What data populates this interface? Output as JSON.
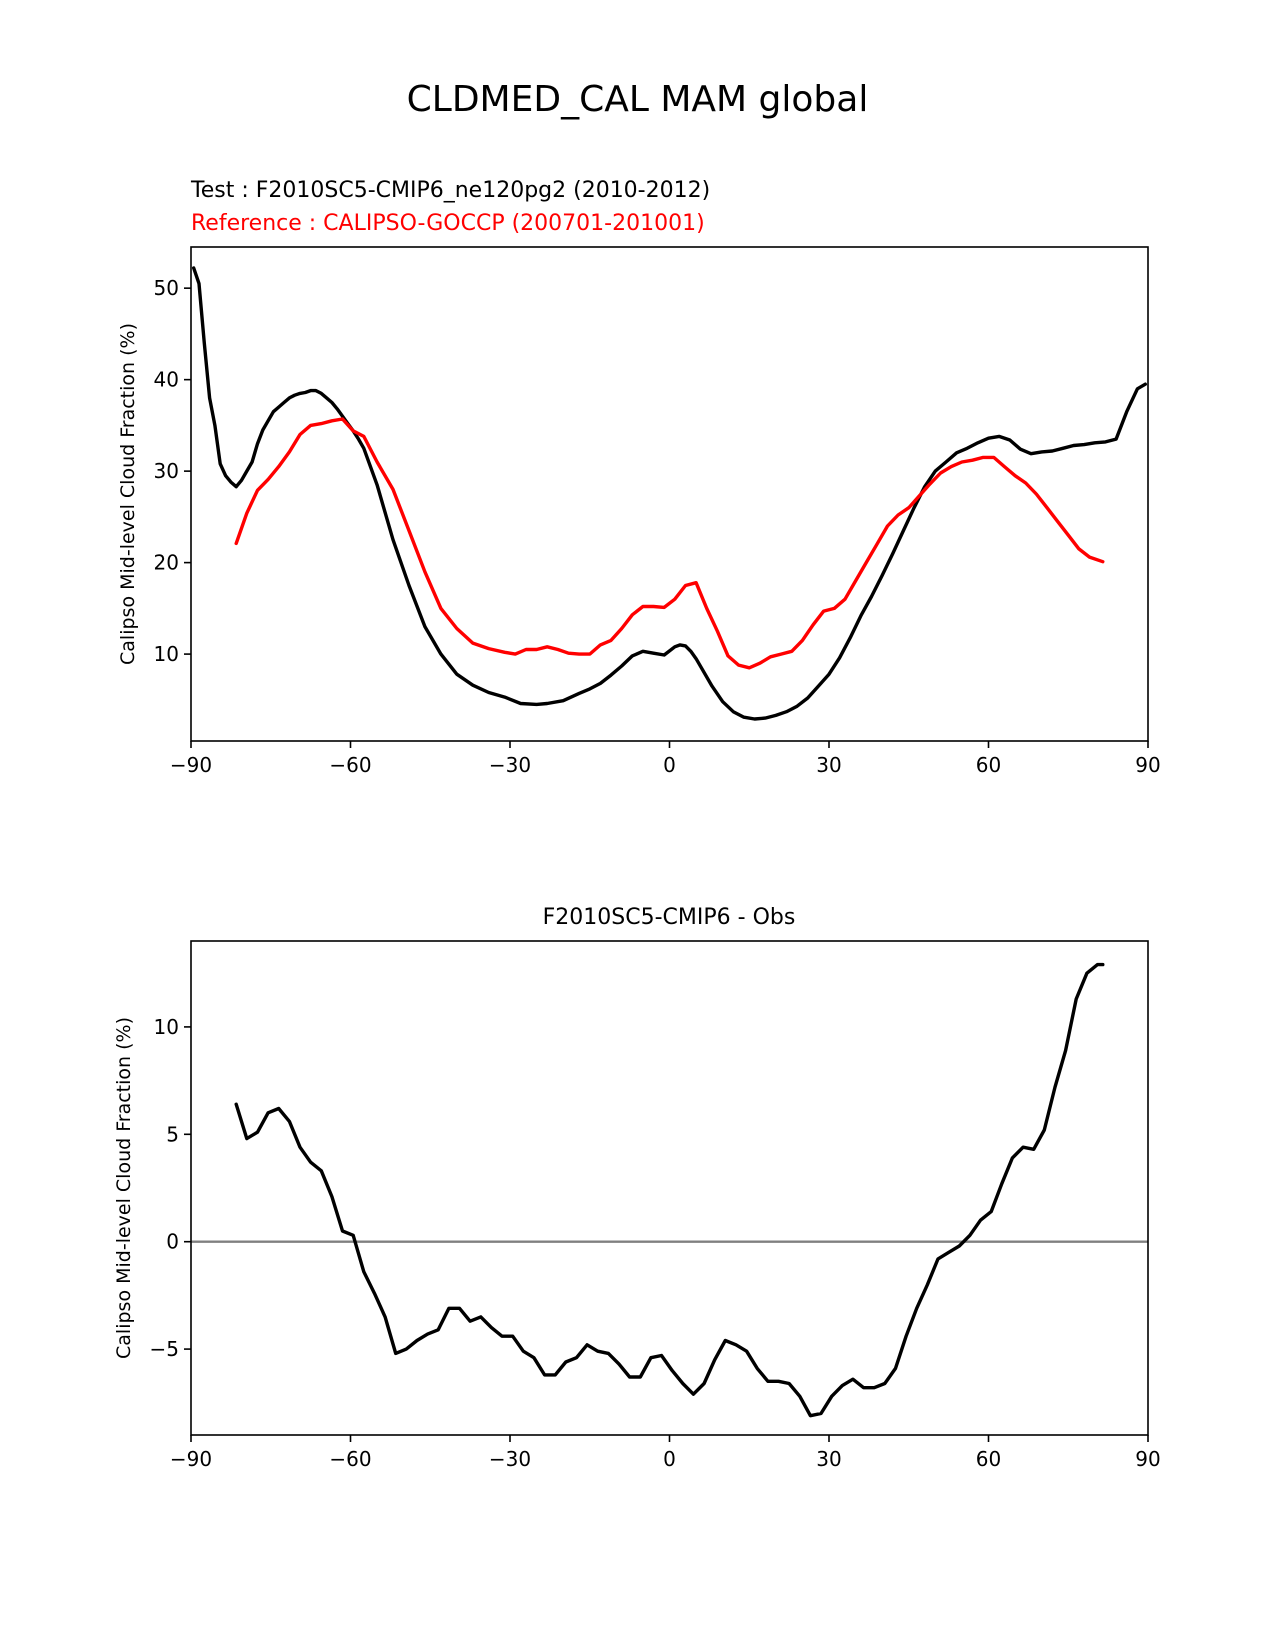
{
  "chart_data": [
    {
      "type": "line",
      "suptitle": "CLDMED_CAL MAM global",
      "test_label": "Test : F2010SC5-CMIP6_ne120pg2 (2010-2012)",
      "ref_label": "Reference : CALIPSO-GOCCP (200701-201001)",
      "xlabel": "",
      "ylabel": "Calipso Mid-level Cloud Fraction (%)",
      "xlim": [
        -90,
        90
      ],
      "ylim": [
        0.5,
        54.5
      ],
      "xticks": [
        -90,
        -60,
        -30,
        0,
        30,
        60,
        90
      ],
      "xtick_labels": [
        "−90",
        "−60",
        "−30",
        "0",
        "30",
        "60",
        "90"
      ],
      "yticks": [
        10,
        20,
        30,
        40,
        50
      ],
      "ytick_labels": [
        "10",
        "20",
        "30",
        "40",
        "50"
      ],
      "series": [
        {
          "name": "Test",
          "color": "#000000",
          "x": [
            -89.5,
            -88.5,
            -87.5,
            -86.5,
            -85.5,
            -84.5,
            -83.5,
            -82.5,
            -81.5,
            -80.5,
            -79.5,
            -78.5,
            -77.5,
            -76.5,
            -75.5,
            -74.5,
            -73.5,
            -72.5,
            -71.5,
            -70.5,
            -69.5,
            -68.5,
            -67.5,
            -66.5,
            -65.5,
            -64.5,
            -63.5,
            -62.5,
            -61.5,
            -60.5,
            -59.5,
            -58.5,
            -57.5,
            -55,
            -52,
            -49,
            -46,
            -43,
            -40,
            -37,
            -34,
            -31,
            -28,
            -25,
            -23,
            -20,
            -17,
            -15,
            -13,
            -11,
            -9,
            -7,
            -5,
            -3,
            -1,
            1,
            2,
            3,
            4,
            5,
            6,
            8,
            10,
            12,
            14,
            16,
            18,
            20,
            22,
            24,
            26,
            28,
            30,
            32,
            34,
            36,
            38,
            40,
            42,
            44,
            46,
            48,
            50,
            52,
            54,
            56,
            58,
            60,
            62,
            64,
            66,
            68,
            70,
            72,
            74,
            76,
            78,
            80,
            82,
            84,
            86,
            88,
            89.5
          ],
          "y": [
            52.2,
            50.5,
            44,
            38,
            35,
            30.8,
            29.5,
            28.8,
            28.3,
            29,
            30,
            31,
            33,
            34.5,
            35.5,
            36.5,
            37,
            37.5,
            38,
            38.3,
            38.5,
            38.6,
            38.8,
            38.8,
            38.5,
            38,
            37.5,
            36.8,
            36,
            35.2,
            34.4,
            33.5,
            32.5,
            28.5,
            22.5,
            17.5,
            13,
            10,
            7.8,
            6.6,
            5.8,
            5.3,
            4.6,
            4.5,
            4.6,
            4.9,
            5.7,
            6.2,
            6.8,
            7.7,
            8.7,
            9.8,
            10.3,
            10.1,
            9.9,
            10.8,
            11,
            10.9,
            10.3,
            9.5,
            8.5,
            6.5,
            4.8,
            3.7,
            3.1,
            2.9,
            3.0,
            3.3,
            3.7,
            4.3,
            5.2,
            6.5,
            7.8,
            9.6,
            11.8,
            14.2,
            16.3,
            18.6,
            21,
            23.5,
            26,
            28.3,
            30,
            31,
            32,
            32.5,
            33.1,
            33.6,
            33.8,
            33.4,
            32.4,
            31.9,
            32.1,
            32.2,
            32.5,
            32.8,
            32.9,
            33.1,
            33.2,
            33.5,
            36.5,
            39,
            39.5
          ]
        },
        {
          "name": "Reference",
          "color": "#ff0000",
          "x": [
            -81.5,
            -79.5,
            -77.5,
            -75.5,
            -73.5,
            -71.5,
            -69.5,
            -67.5,
            -65.5,
            -63.5,
            -61.5,
            -59.5,
            -57.5,
            -55,
            -52,
            -49,
            -46,
            -43,
            -40,
            -37,
            -34,
            -31,
            -29,
            -27,
            -25,
            -23,
            -21,
            -19,
            -17,
            -15,
            -13,
            -11,
            -9,
            -7,
            -5,
            -3,
            -1,
            1,
            3,
            5,
            7,
            9,
            11,
            13,
            15,
            17,
            19,
            21,
            23,
            25,
            27,
            29,
            31,
            33,
            35,
            37,
            39,
            41,
            43,
            45,
            47,
            49,
            51,
            53,
            55,
            57,
            59,
            61,
            63,
            65,
            67,
            69,
            71,
            73,
            75,
            77,
            79,
            81.5
          ],
          "y": [
            22.1,
            25.4,
            27.9,
            29.1,
            30.5,
            32.1,
            34,
            35,
            35.2,
            35.5,
            35.7,
            34.4,
            33.8,
            31,
            28,
            23.5,
            19,
            15,
            12.8,
            11.2,
            10.6,
            10.2,
            10,
            10.5,
            10.5,
            10.8,
            10.5,
            10.1,
            10,
            10,
            11,
            11.5,
            12.8,
            14.3,
            15.2,
            15.2,
            15.1,
            16,
            17.5,
            17.8,
            15,
            12.5,
            9.8,
            8.8,
            8.5,
            9,
            9.7,
            10,
            10.3,
            11.5,
            13.2,
            14.7,
            15,
            16,
            18,
            20,
            22,
            24,
            25.2,
            26,
            27.3,
            28.6,
            29.8,
            30.5,
            31,
            31.2,
            31.5,
            31.5,
            30.5,
            29.5,
            28.7,
            27.5,
            26,
            24.5,
            23,
            21.5,
            20.6,
            20.1
          ]
        }
      ]
    },
    {
      "type": "line",
      "title": "F2010SC5-CMIP6 - Obs",
      "xlabel": "",
      "ylabel": "Calipso Mid-level Cloud Fraction (%)",
      "xlim": [
        -90,
        90
      ],
      "ylim": [
        -9,
        14
      ],
      "xticks": [
        -90,
        -60,
        -30,
        0,
        30,
        60,
        90
      ],
      "xtick_labels": [
        "−90",
        "−60",
        "−30",
        "0",
        "30",
        "60",
        "90"
      ],
      "yticks": [
        -5,
        0,
        5,
        10
      ],
      "ytick_labels": [
        "−5",
        "0",
        "5",
        "10"
      ],
      "zero_line_color": "#808080",
      "series": [
        {
          "name": "Test - Obs",
          "color": "#000000",
          "x": [
            -81.5,
            -79.5,
            -77.5,
            -75.5,
            -73.5,
            -71.5,
            -69.5,
            -67.5,
            -65.5,
            -63.5,
            -61.5,
            -59.5,
            -57.5,
            -55.5,
            -53.5,
            -51.5,
            -49.5,
            -47.5,
            -45.5,
            -43.5,
            -41.5,
            -39.5,
            -37.5,
            -35.5,
            -33.5,
            -31.5,
            -29.5,
            -27.5,
            -25.5,
            -23.5,
            -21.5,
            -19.5,
            -17.5,
            -15.5,
            -13.5,
            -11.5,
            -9.5,
            -7.5,
            -5.5,
            -3.5,
            -1.5,
            0.5,
            2.5,
            4.5,
            6.5,
            8.5,
            10.5,
            12.5,
            14.5,
            16.5,
            18.5,
            20.5,
            22.5,
            24.5,
            26.5,
            28.5,
            30.5,
            32.5,
            34.5,
            36.5,
            38.5,
            40.5,
            42.5,
            44.5,
            46.5,
            48.5,
            50.5,
            52.5,
            54.5,
            56.5,
            58.5,
            60.5,
            62.5,
            64.5,
            66.5,
            68.5,
            70.5,
            72.5,
            74.5,
            76.5,
            78.5,
            80.5,
            81.5
          ],
          "y": [
            6.4,
            4.8,
            5.1,
            6,
            6.2,
            5.6,
            4.4,
            3.7,
            3.3,
            2.1,
            0.5,
            0.3,
            -1.4,
            -2.4,
            -3.5,
            -5.2,
            -5.0,
            -4.6,
            -4.3,
            -4.1,
            -3.1,
            -3.1,
            -3.7,
            -3.5,
            -4.0,
            -4.4,
            -4.4,
            -5.1,
            -5.4,
            -6.2,
            -6.2,
            -5.6,
            -5.4,
            -4.8,
            -5.1,
            -5.2,
            -5.7,
            -6.3,
            -6.3,
            -5.4,
            -5.3,
            -6.0,
            -6.6,
            -7.1,
            -6.6,
            -5.5,
            -4.6,
            -4.8,
            -5.1,
            -5.9,
            -6.5,
            -6.5,
            -6.6,
            -7.2,
            -8.1,
            -8.0,
            -7.2,
            -6.7,
            -6.4,
            -6.8,
            -6.8,
            -6.6,
            -5.9,
            -4.4,
            -3.1,
            -2.0,
            -0.8,
            -0.5,
            -0.2,
            0.3,
            1.0,
            1.4,
            2.7,
            3.9,
            4.4,
            4.3,
            5.2,
            7.2,
            8.9,
            11.3,
            12.5,
            12.9,
            12.9
          ]
        }
      ]
    }
  ]
}
